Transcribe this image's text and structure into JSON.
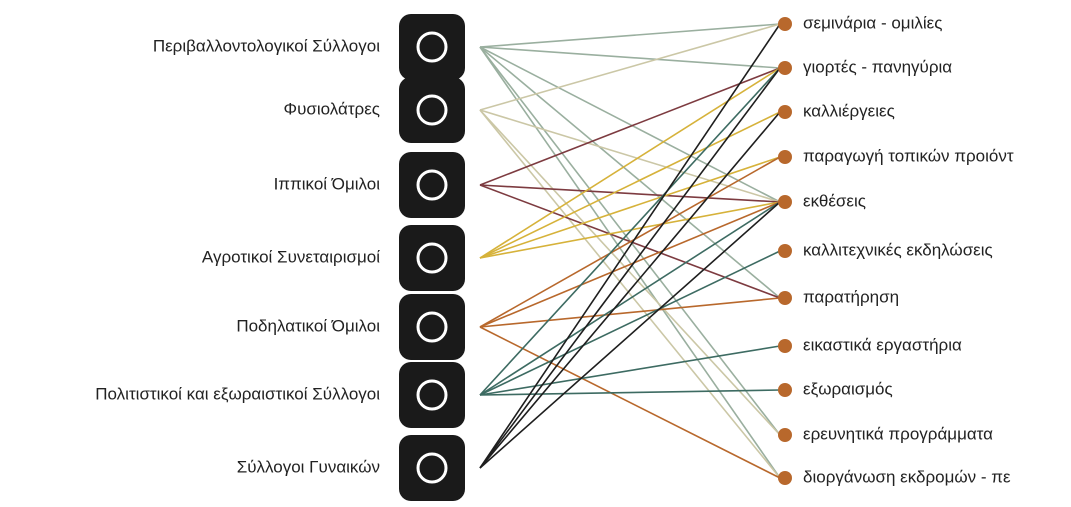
{
  "groups": [
    "Περιβαλλοντολογικοί Σύλλογοι",
    "Φυσιολάτρες",
    "Ιππικοί Όμιλοι",
    "Αγροτικοί Συνεταιρισμοί",
    "Ποδηλατικοί Όμιλοι",
    "Πολιτιστικοί και εξωραιστικοί Σύλλογοι",
    "Σύλλογοι Γυναικών"
  ],
  "activities": [
    "σεμινάρια - ομιλίες",
    "γιορτές - πανηγύρια",
    "καλλιέργειες",
    "παραγωγή τοπικών προιόντ",
    "εκθέσεις",
    "καλλιτεχνικές εκδηλώσεις",
    "παρατήρηση",
    "εικαστικά εργαστήρια",
    "εξωραισμός",
    "ερευνητικά προγράμματα",
    "διοργάνωση εκδρομών - πε"
  ]
}
